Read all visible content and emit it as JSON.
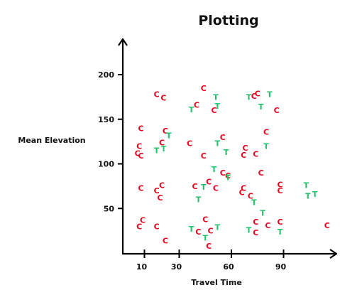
{
  "chart_data": {
    "type": "scatter",
    "title": "Plotting",
    "xlabel": "Travel Time",
    "ylabel": "Mean Elevation",
    "xticks": [
      10,
      30,
      60,
      90
    ],
    "yticks": [
      50,
      100,
      150,
      200
    ],
    "xlim": [
      0,
      110
    ],
    "ylim": [
      0,
      215
    ],
    "grid": false,
    "legend": "none",
    "series": [
      {
        "marker": "C",
        "color": "#e8001c",
        "points": [
          [
            17,
            178
          ],
          [
            21,
            174
          ],
          [
            44,
            185
          ],
          [
            40,
            166
          ],
          [
            50,
            160
          ],
          [
            75,
            179
          ],
          [
            73,
            176
          ],
          [
            86,
            160
          ],
          [
            8,
            140
          ],
          [
            22,
            137
          ],
          [
            20,
            124
          ],
          [
            36,
            123
          ],
          [
            55,
            130
          ],
          [
            68,
            118
          ],
          [
            80,
            136
          ],
          [
            7,
            120
          ],
          [
            6,
            112
          ],
          [
            8,
            109
          ],
          [
            44,
            109
          ],
          [
            67,
            110
          ],
          [
            74,
            111
          ],
          [
            8,
            73
          ],
          [
            17,
            70
          ],
          [
            20,
            76
          ],
          [
            19,
            62
          ],
          [
            39,
            75
          ],
          [
            47,
            80
          ],
          [
            51,
            73
          ],
          [
            55,
            90
          ],
          [
            58,
            87
          ],
          [
            67,
            73
          ],
          [
            66,
            68
          ],
          [
            71,
            64
          ],
          [
            77,
            90
          ],
          [
            88,
            77
          ],
          [
            88,
            70
          ],
          [
            7,
            30
          ],
          [
            9,
            37
          ],
          [
            17,
            30
          ],
          [
            22,
            14
          ],
          [
            41,
            24
          ],
          [
            45,
            38
          ],
          [
            47,
            8
          ],
          [
            48,
            25
          ],
          [
            74,
            35
          ],
          [
            74,
            23
          ],
          [
            81,
            31
          ],
          [
            88,
            35
          ],
          [
            115,
            31
          ]
        ]
      },
      {
        "marker": "T",
        "color": "#1fc36a",
        "points": [
          [
            51,
            175
          ],
          [
            52,
            165
          ],
          [
            37,
            161
          ],
          [
            70,
            175
          ],
          [
            82,
            178
          ],
          [
            77,
            164
          ],
          [
            24,
            132
          ],
          [
            21,
            117
          ],
          [
            17,
            115
          ],
          [
            52,
            123
          ],
          [
            57,
            113
          ],
          [
            80,
            120
          ],
          [
            50,
            94
          ],
          [
            44,
            74
          ],
          [
            41,
            60
          ],
          [
            58,
            85
          ],
          [
            73,
            57
          ],
          [
            78,
            45
          ],
          [
            103,
            76
          ],
          [
            104,
            64
          ],
          [
            108,
            66
          ],
          [
            37,
            27
          ],
          [
            45,
            17
          ],
          [
            52,
            29
          ],
          [
            70,
            26
          ],
          [
            88,
            24
          ]
        ]
      }
    ]
  }
}
